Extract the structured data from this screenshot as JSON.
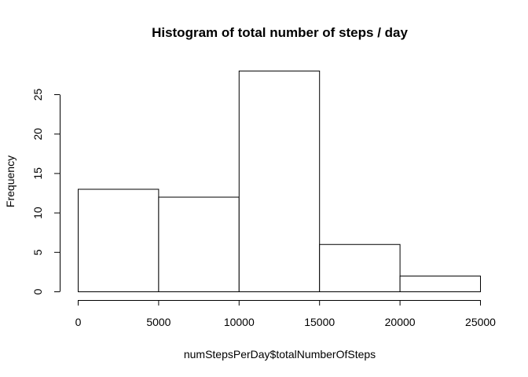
{
  "chart_data": {
    "type": "bar",
    "title": "Histogram of total number of steps / day",
    "xlabel": "numStepsPerDay$totalNumberOfSteps",
    "ylabel": "Frequency",
    "bins": [
      {
        "start": 0,
        "end": 5000,
        "count": 13
      },
      {
        "start": 5000,
        "end": 10000,
        "count": 12
      },
      {
        "start": 10000,
        "end": 15000,
        "count": 28
      },
      {
        "start": 15000,
        "end": 20000,
        "count": 6
      },
      {
        "start": 20000,
        "end": 25000,
        "count": 2
      }
    ],
    "x_ticks": [
      0,
      5000,
      10000,
      15000,
      20000,
      25000
    ],
    "x_tick_labels": [
      "0",
      "5000",
      "10000",
      "15000",
      "20000",
      "25000"
    ],
    "y_ticks": [
      0,
      5,
      10,
      15,
      20,
      25
    ],
    "y_tick_labels": [
      "0",
      "5",
      "10",
      "15",
      "20",
      "25"
    ],
    "xlim": [
      0,
      25000
    ],
    "ylim": [
      0,
      28
    ],
    "grid": false,
    "legend": "none",
    "colors": {
      "bar_fill": "#ffffff",
      "bar_stroke": "#000000"
    }
  }
}
